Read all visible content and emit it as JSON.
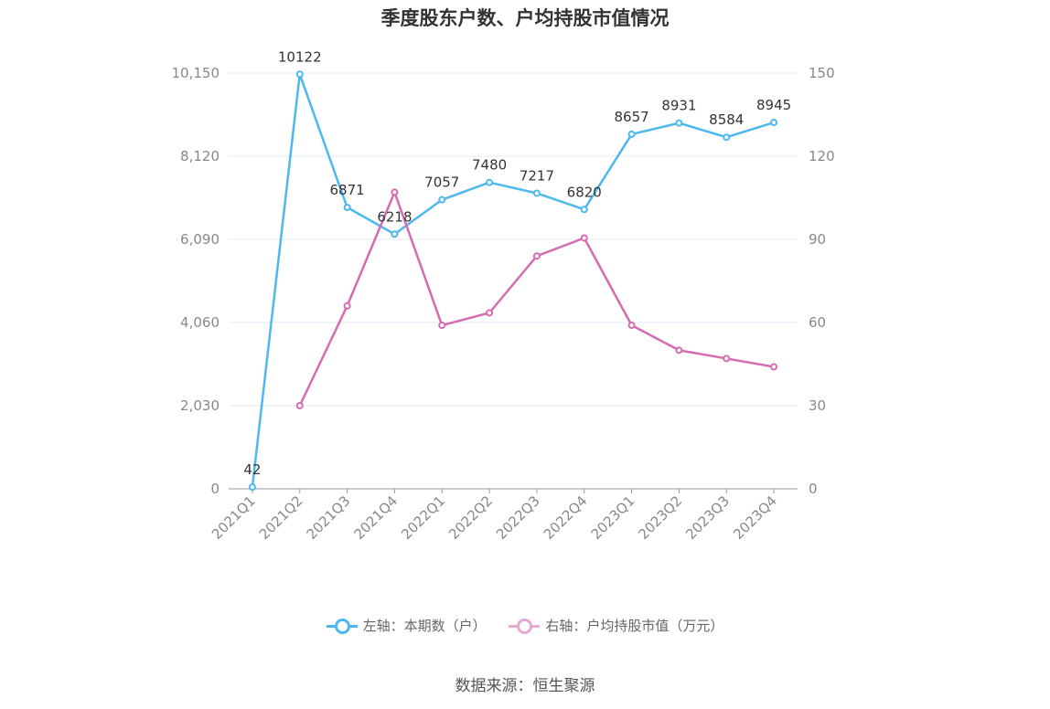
{
  "title": "季度股东户数、户均持股市值情况",
  "source": "数据来源：恒生聚源",
  "chart_data": {
    "type": "line",
    "categories": [
      "2021Q1",
      "2021Q2",
      "2021Q3",
      "2021Q4",
      "2022Q1",
      "2022Q2",
      "2022Q3",
      "2022Q4",
      "2023Q1",
      "2023Q2",
      "2023Q3",
      "2023Q4"
    ],
    "series": [
      {
        "name": "左轴：本期数（户）",
        "axis": "left",
        "color": "#4db8ef",
        "values": [
          42,
          10122,
          6871,
          6218,
          7057,
          7480,
          7217,
          6820,
          8657,
          8931,
          8584,
          8945
        ],
        "labels": [
          "42",
          "10122",
          "6871",
          "6218",
          "7057",
          "7480",
          "7217",
          "6820",
          "8657",
          "8931",
          "8584",
          "8945"
        ]
      },
      {
        "name": "右轴：户均持股市值（万元）",
        "axis": "right",
        "color": "#d56bb0",
        "values": [
          null,
          30,
          66,
          107,
          59,
          63.5,
          84,
          90.5,
          59,
          50,
          47,
          44
        ]
      }
    ],
    "left_axis": {
      "ylim": [
        0,
        10150
      ],
      "ticks": [
        "0",
        "2,030",
        "4,060",
        "6,090",
        "8,120",
        "10,150"
      ]
    },
    "right_axis": {
      "ylim": [
        0,
        150
      ],
      "ticks": [
        "0",
        "30",
        "60",
        "90",
        "120",
        "150"
      ]
    },
    "grid": true,
    "legend_position": "bottom"
  }
}
